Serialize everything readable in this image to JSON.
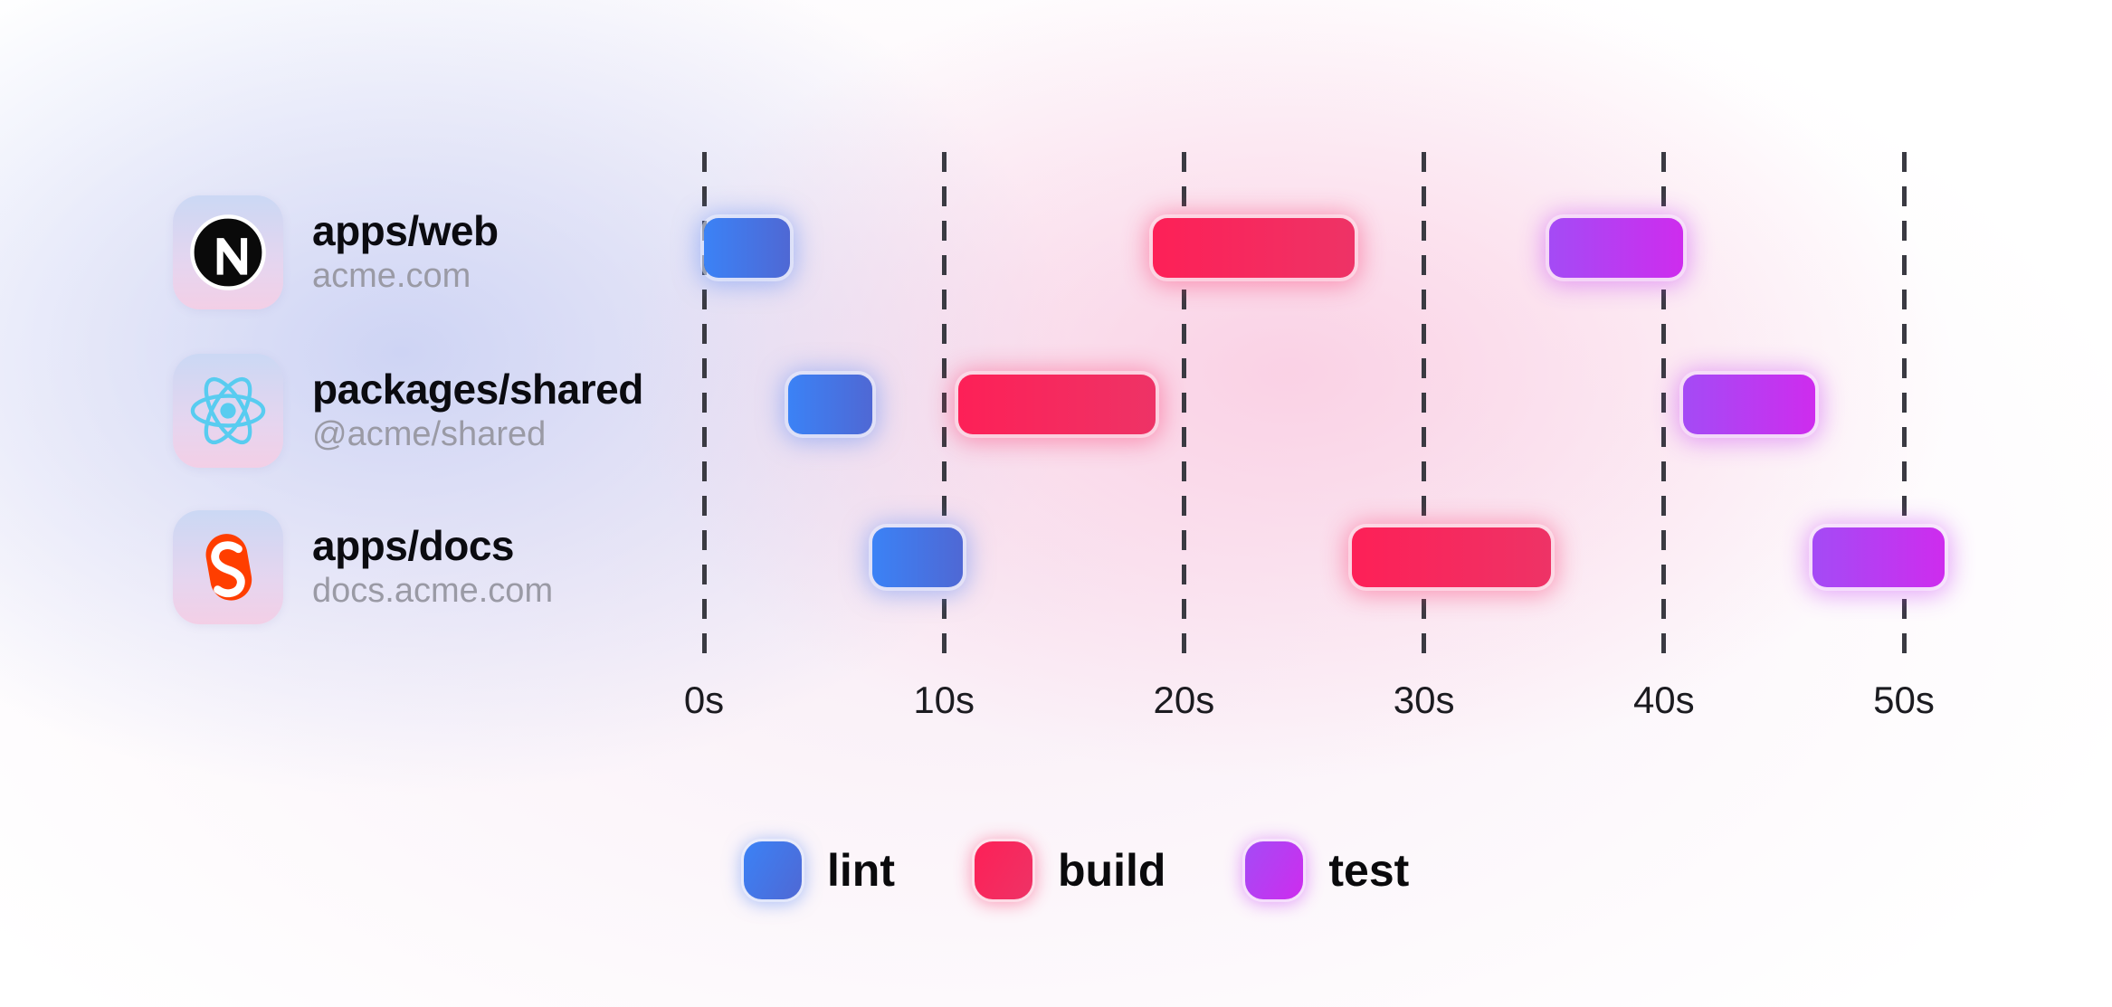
{
  "projects": [
    {
      "name": "apps/web",
      "subtitle": "acme.com",
      "icon": "nextjs-icon"
    },
    {
      "name": "packages/shared",
      "subtitle": "@acme/shared",
      "icon": "react-icon"
    },
    {
      "name": "apps/docs",
      "subtitle": "docs.acme.com",
      "icon": "svelte-icon"
    }
  ],
  "chart_data": {
    "type": "gantt",
    "time_unit": "seconds",
    "xlim": [
      0,
      52.5
    ],
    "grid": "dashed-vertical",
    "legend_position": "bottom",
    "x_ticks": [
      {
        "label": "0s",
        "value": 0
      },
      {
        "label": "10s",
        "value": 10
      },
      {
        "label": "20s",
        "value": 20
      },
      {
        "label": "30s",
        "value": 30
      },
      {
        "label": "40s",
        "value": 40
      },
      {
        "label": "50s",
        "value": 50
      }
    ],
    "rows": [
      {
        "project": "apps/web",
        "tasks": [
          {
            "type": "lint",
            "start": 0,
            "end": 3.6
          },
          {
            "type": "build",
            "start": 18.7,
            "end": 27.1
          },
          {
            "type": "test",
            "start": 35.2,
            "end": 40.8
          }
        ]
      },
      {
        "project": "packages/shared",
        "tasks": [
          {
            "type": "lint",
            "start": 3.5,
            "end": 7.0
          },
          {
            "type": "build",
            "start": 10.6,
            "end": 18.8
          },
          {
            "type": "test",
            "start": 40.8,
            "end": 46.3
          }
        ]
      },
      {
        "project": "apps/docs",
        "tasks": [
          {
            "type": "lint",
            "start": 7.0,
            "end": 10.8
          },
          {
            "type": "build",
            "start": 27.0,
            "end": 35.3
          },
          {
            "type": "test",
            "start": 46.2,
            "end": 51.7
          }
        ]
      }
    ],
    "legend": [
      {
        "id": "lint",
        "label": "lint"
      },
      {
        "id": "build",
        "label": "build"
      },
      {
        "id": "test",
        "label": "test"
      }
    ]
  },
  "colors": {
    "task": {
      "lint": {
        "from": "#3b82f6",
        "to": "#4f68d4",
        "glow": "rgba(99,141,244,0.50)"
      },
      "build": {
        "from": "#fd2057",
        "to": "#ee3366",
        "glow": "rgba(250,56,110,0.45)"
      },
      "test": {
        "from": "#a44bf5",
        "to": "#ce2cee",
        "glow": "rgba(199,64,243,0.45)"
      }
    },
    "icons": {
      "nextjs": "#0a0a0a",
      "react": "#58ccf0",
      "svelte": "#ff3e00"
    },
    "gridline": "#3a3a42"
  }
}
